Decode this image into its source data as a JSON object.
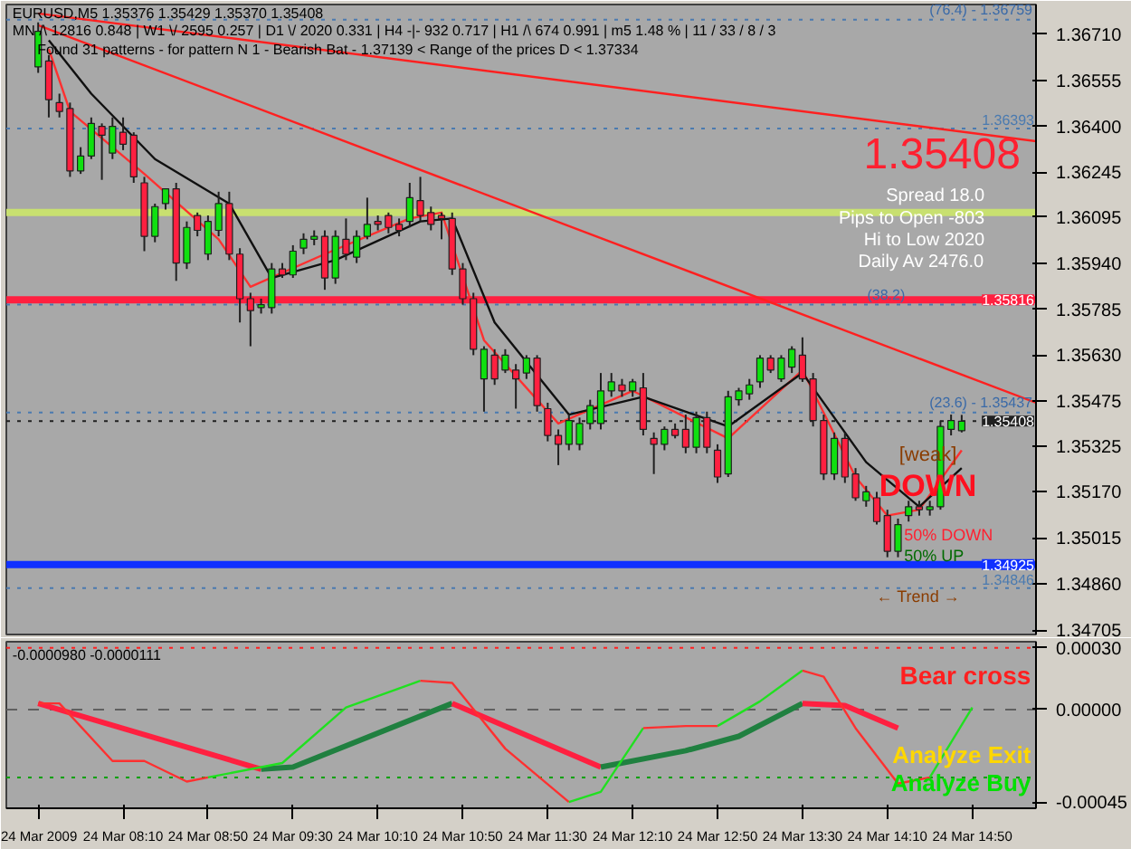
{
  "chart_data": [
    {
      "type": "candlestick",
      "title": "EURUSD,M5  1.35376 1.35429 1.35370 1.35408",
      "subtitle": "MN /\\ 12816   0.848  |  W1 \\/ 2595   0.257  |  D1 \\/ 2020   0.331  |  H4 -|- 932   0.717  |  H1 /\\ 674   0.991  |  m5  1.48 %  |  11 / 33 / 8 / 3",
      "annotations": [
        "Found 31 patterns  -  for pattern N 1 - Bearish Bat - 1.37139 < Range of the prices D < 1.37334",
        "1.35408",
        "Spread  18.0",
        "Pips to Open  -803",
        "Hi to Low  2020",
        "Daily Av  2476.0",
        "[weak]",
        "DOWN",
        "50%   DOWN",
        "50%   UP",
        "←   Trend   →",
        {
          "text": "(76.4) - 1.36759",
          "x": "2009-03-24T15:20",
          "y": 1.36759
        },
        {
          "text": "(38.2)",
          "x": "2009-03-24T14:20",
          "y": 1.358
        },
        {
          "text": "(23.6) - 1.35437",
          "x": "2009-03-24T15:20",
          "y": 1.35437
        }
      ],
      "tick_labels": "y",
      "xlim": [
        "2009-03-24T07:15",
        "2009-03-24T15:20"
      ],
      "ylim": [
        1.3469,
        1.3681
      ],
      "yticks": [
        {
          "value": 1.3671,
          "label": "1.36710"
        },
        {
          "value": 1.36555,
          "label": "1.36555"
        },
        {
          "value": 1.364,
          "label": "1.36400"
        },
        {
          "value": 1.36245,
          "label": "1.36245"
        },
        {
          "value": 1.36095,
          "label": "1.36095"
        },
        {
          "value": 1.3594,
          "label": "1.35940"
        },
        {
          "value": 1.35785,
          "label": "1.35785"
        },
        {
          "value": 1.3563,
          "label": "1.35630"
        },
        {
          "value": 1.35475,
          "label": "1.35475"
        },
        {
          "value": 1.35325,
          "label": "1.35325"
        },
        {
          "value": 1.3517,
          "label": "1.35170"
        },
        {
          "value": 1.35015,
          "label": "1.35015"
        },
        {
          "value": 1.3486,
          "label": "1.34860"
        },
        {
          "value": 1.34705,
          "label": "1.34705"
        }
      ],
      "ref_lines": [
        {
          "axis": "y",
          "value": 1.36759,
          "color": "#4a7ab0",
          "line_style": "dotted"
        },
        {
          "axis": "y",
          "value": 1.36393,
          "label": "1.36393",
          "color": "#4a7ab0",
          "line_style": "dotted"
        },
        {
          "axis": "y",
          "value": 1.3611,
          "color": "#c8e070",
          "line_style": "solid"
        },
        {
          "axis": "y",
          "value": 1.35816,
          "label": "1.35816",
          "color": "#ff2040",
          "line_style": "solid"
        },
        {
          "axis": "y",
          "value": 1.358,
          "color": "#4a7ab0",
          "line_style": "dotted"
        },
        {
          "axis": "y",
          "value": 1.35437,
          "color": "#4a7ab0",
          "line_style": "dotted"
        },
        {
          "axis": "y",
          "value": 1.35408,
          "label": "1.35408",
          "color": "#202020",
          "line_style": "dotted"
        },
        {
          "axis": "y",
          "value": 1.34925,
          "label": "1.34925",
          "color": "#1030ff",
          "line_style": "solid"
        },
        {
          "axis": "y",
          "value": 1.34846,
          "label": "1.34846",
          "color": "#4a7ab0",
          "line_style": "dotted"
        }
      ],
      "series": [
        {
          "type": "candlestick",
          "x": [
            "2009-03-24T07:30",
            "2009-03-24T07:35",
            "2009-03-24T07:40",
            "2009-03-24T07:45",
            "2009-03-24T07:50",
            "2009-03-24T07:55",
            "2009-03-24T08:00",
            "2009-03-24T08:05",
            "2009-03-24T08:10",
            "2009-03-24T08:15",
            "2009-03-24T08:20",
            "2009-03-24T08:25",
            "2009-03-24T08:30",
            "2009-03-24T08:35",
            "2009-03-24T08:40",
            "2009-03-24T08:45",
            "2009-03-24T08:50",
            "2009-03-24T08:55",
            "2009-03-24T09:00",
            "2009-03-24T09:05",
            "2009-03-24T09:10",
            "2009-03-24T09:15",
            "2009-03-24T09:20",
            "2009-03-24T09:25",
            "2009-03-24T09:30",
            "2009-03-24T09:35",
            "2009-03-24T09:40",
            "2009-03-24T09:45",
            "2009-03-24T09:50",
            "2009-03-24T09:55",
            "2009-03-24T10:00",
            "2009-03-24T10:05",
            "2009-03-24T10:10",
            "2009-03-24T10:15",
            "2009-03-24T10:20",
            "2009-03-24T10:25",
            "2009-03-24T10:30",
            "2009-03-24T10:35",
            "2009-03-24T10:40",
            "2009-03-24T10:45",
            "2009-03-24T10:50",
            "2009-03-24T10:55",
            "2009-03-24T11:00",
            "2009-03-24T11:05",
            "2009-03-24T11:10",
            "2009-03-24T11:15",
            "2009-03-24T11:20",
            "2009-03-24T11:25",
            "2009-03-24T11:30",
            "2009-03-24T11:35",
            "2009-03-24T11:40",
            "2009-03-24T11:45",
            "2009-03-24T11:50",
            "2009-03-24T11:55",
            "2009-03-24T12:00",
            "2009-03-24T12:05",
            "2009-03-24T12:10",
            "2009-03-24T12:15",
            "2009-03-24T12:20",
            "2009-03-24T12:25",
            "2009-03-24T12:30",
            "2009-03-24T12:35",
            "2009-03-24T12:40",
            "2009-03-24T12:45",
            "2009-03-24T12:50",
            "2009-03-24T12:55",
            "2009-03-24T13:00",
            "2009-03-24T13:05",
            "2009-03-24T13:10",
            "2009-03-24T13:15",
            "2009-03-24T13:20",
            "2009-03-24T13:25",
            "2009-03-24T13:30",
            "2009-03-24T13:35",
            "2009-03-24T13:40",
            "2009-03-24T13:45",
            "2009-03-24T13:50",
            "2009-03-24T13:55",
            "2009-03-24T14:00",
            "2009-03-24T14:05",
            "2009-03-24T14:10",
            "2009-03-24T14:15",
            "2009-03-24T14:20",
            "2009-03-24T14:25",
            "2009-03-24T14:30",
            "2009-03-24T14:35",
            "2009-03-24T14:40",
            "2009-03-24T14:45"
          ],
          "ohlc": [
            [
              1.366,
              1.3675,
              1.3658,
              1.3672
            ],
            [
              1.3662,
              1.3664,
              1.3643,
              1.3649
            ],
            [
              1.3648,
              1.3651,
              1.3643,
              1.3645
            ],
            [
              1.3646,
              1.3648,
              1.3623,
              1.3625
            ],
            [
              1.3625,
              1.3633,
              1.3624,
              1.363
            ],
            [
              1.363,
              1.3643,
              1.3629,
              1.3641
            ],
            [
              1.364,
              1.3641,
              1.3622,
              1.3637
            ],
            [
              1.3631,
              1.3643,
              1.3629,
              1.364
            ],
            [
              1.3638,
              1.3643,
              1.3632,
              1.3634
            ],
            [
              1.3637,
              1.3638,
              1.3621,
              1.3623
            ],
            [
              1.3621,
              1.3623,
              1.3598,
              1.3603
            ],
            [
              1.3603,
              1.3614,
              1.3601,
              1.3613
            ],
            [
              1.3614,
              1.3619,
              1.3612,
              1.3619
            ],
            [
              1.3619,
              1.3621,
              1.3588,
              1.3594
            ],
            [
              1.3594,
              1.3608,
              1.3592,
              1.3606
            ],
            [
              1.361,
              1.3611,
              1.3603,
              1.3605
            ],
            [
              1.3597,
              1.361,
              1.3595,
              1.3608
            ],
            [
              1.3605,
              1.3618,
              1.3603,
              1.3614
            ],
            [
              1.3614,
              1.3618,
              1.3595,
              1.3597
            ],
            [
              1.3597,
              1.3599,
              1.3574,
              1.3582
            ],
            [
              1.3582,
              1.3584,
              1.3566,
              1.3578
            ],
            [
              1.3579,
              1.3582,
              1.3577,
              1.358
            ],
            [
              1.3579,
              1.3594,
              1.3577,
              1.3592
            ],
            [
              1.3592,
              1.3594,
              1.3589,
              1.359
            ],
            [
              1.359,
              1.36,
              1.3589,
              1.3598
            ],
            [
              1.3599,
              1.3604,
              1.3597,
              1.3602
            ],
            [
              1.3602,
              1.3605,
              1.36,
              1.3603
            ],
            [
              1.3603,
              1.3605,
              1.3585,
              1.3589
            ],
            [
              1.3589,
              1.3605,
              1.3587,
              1.3603
            ],
            [
              1.3602,
              1.3609,
              1.3595,
              1.3597
            ],
            [
              1.3596,
              1.3605,
              1.3594,
              1.3603
            ],
            [
              1.3603,
              1.3616,
              1.3602,
              1.3607
            ],
            [
              1.3608,
              1.361,
              1.3605,
              1.3607
            ],
            [
              1.361,
              1.3611,
              1.3604,
              1.3606
            ],
            [
              1.3607,
              1.3609,
              1.3603,
              1.3605
            ],
            [
              1.3608,
              1.3621,
              1.3606,
              1.3616
            ],
            [
              1.3615,
              1.3623,
              1.3608,
              1.361
            ],
            [
              1.3611,
              1.3613,
              1.3605,
              1.3607
            ],
            [
              1.361,
              1.3611,
              1.3602,
              1.3609
            ],
            [
              1.3609,
              1.3611,
              1.359,
              1.3592
            ],
            [
              1.3592,
              1.3594,
              1.358,
              1.3582
            ],
            [
              1.3582,
              1.3584,
              1.3563,
              1.3565
            ],
            [
              1.3555,
              1.3566,
              1.3544,
              1.3565
            ],
            [
              1.3563,
              1.3565,
              1.3553,
              1.3555
            ],
            [
              1.3558,
              1.3565,
              1.3557,
              1.3563
            ],
            [
              1.3558,
              1.356,
              1.3545,
              1.3555
            ],
            [
              1.3557,
              1.3563,
              1.3555,
              1.3562
            ],
            [
              1.3562,
              1.3563,
              1.3544,
              1.3546
            ],
            [
              1.3545,
              1.3547,
              1.3534,
              1.3536
            ],
            [
              1.3536,
              1.3538,
              1.3526,
              1.3533
            ],
            [
              1.3533,
              1.3543,
              1.3531,
              1.3541
            ],
            [
              1.3533,
              1.3542,
              1.3531,
              1.354
            ],
            [
              1.354,
              1.3548,
              1.3538,
              1.3546
            ],
            [
              1.354,
              1.3557,
              1.3538,
              1.3551
            ],
            [
              1.3551,
              1.3557,
              1.3549,
              1.3554
            ],
            [
              1.3553,
              1.3555,
              1.3549,
              1.3551
            ],
            [
              1.3551,
              1.3555,
              1.3549,
              1.3554
            ],
            [
              1.3552,
              1.3557,
              1.3536,
              1.3538
            ],
            [
              1.3535,
              1.3537,
              1.3523,
              1.3533
            ],
            [
              1.3533,
              1.3539,
              1.3531,
              1.3538
            ],
            [
              1.3538,
              1.354,
              1.3535,
              1.3536
            ],
            [
              1.3538,
              1.3543,
              1.353,
              1.3532
            ],
            [
              1.3532,
              1.3544,
              1.353,
              1.3542
            ],
            [
              1.3542,
              1.3544,
              1.353,
              1.3532
            ],
            [
              1.3531,
              1.3533,
              1.352,
              1.3522
            ],
            [
              1.3523,
              1.3551,
              1.3522,
              1.3549
            ],
            [
              1.3548,
              1.3552,
              1.3546,
              1.3551
            ],
            [
              1.355,
              1.3555,
              1.3548,
              1.3553
            ],
            [
              1.3554,
              1.3563,
              1.3552,
              1.3562
            ],
            [
              1.3562,
              1.3563,
              1.3557,
              1.3558
            ],
            [
              1.3555,
              1.3563,
              1.3554,
              1.3562
            ],
            [
              1.3559,
              1.3566,
              1.3557,
              1.3565
            ],
            [
              1.3563,
              1.3569,
              1.3554,
              1.3555
            ],
            [
              1.3555,
              1.3557,
              1.3539,
              1.3541
            ],
            [
              1.3541,
              1.3543,
              1.3521,
              1.3523
            ],
            [
              1.3523,
              1.3537,
              1.3521,
              1.3535
            ],
            [
              1.3535,
              1.3537,
              1.352,
              1.3522
            ],
            [
              1.3523,
              1.3525,
              1.3514,
              1.3515
            ],
            [
              1.3514,
              1.3519,
              1.3512,
              1.3517
            ],
            [
              1.3515,
              1.3517,
              1.3506,
              1.3507
            ],
            [
              1.3509,
              1.3511,
              1.3495,
              1.3497
            ],
            [
              1.3497,
              1.3508,
              1.3495,
              1.3506
            ],
            [
              1.3509,
              1.3514,
              1.3507,
              1.3512
            ],
            [
              1.3512,
              1.3514,
              1.3509,
              1.3511
            ],
            [
              1.3511,
              1.3514,
              1.3509,
              1.3512
            ],
            [
              1.3512,
              1.3541,
              1.3511,
              1.3539
            ],
            [
              1.3538,
              1.3543,
              1.3536,
              1.3541
            ],
            [
              1.35376,
              1.35429,
              1.3537,
              1.35408
            ]
          ]
        },
        {
          "type": "line",
          "color": "#ff3030",
          "x": [
            "2009-03-24T07:35",
            "2009-03-24T07:45",
            "2009-03-24T08:20",
            "2009-03-24T08:55",
            "2009-03-24T09:10",
            "2009-03-24T09:45",
            "2009-03-24T10:25",
            "2009-03-24T10:40",
            "2009-03-24T11:00",
            "2009-03-24T11:35",
            "2009-03-24T12:10",
            "2009-03-24T12:55",
            "2009-03-24T13:30",
            "2009-03-24T13:55",
            "2009-03-24T14:10",
            "2009-03-24T14:25",
            "2009-03-24T14:45"
          ],
          "values": [
            1.3666,
            1.3645,
            1.3624,
            1.3602,
            1.3586,
            1.3597,
            1.3609,
            1.3611,
            1.3568,
            1.354,
            1.3551,
            1.3535,
            1.3558,
            1.3522,
            1.3509,
            1.3511,
            1.3531
          ]
        },
        {
          "type": "line",
          "color": "#101010",
          "x": [
            "2009-03-24T07:35",
            "2009-03-24T07:55",
            "2009-03-24T08:25",
            "2009-03-24T09:00",
            "2009-03-24T09:20",
            "2009-03-24T09:50",
            "2009-03-24T10:30",
            "2009-03-24T10:45",
            "2009-03-24T11:05",
            "2009-03-24T11:40",
            "2009-03-24T12:15",
            "2009-03-24T12:55",
            "2009-03-24T13:30",
            "2009-03-24T14:00",
            "2009-03-24T14:25",
            "2009-03-24T14:45"
          ],
          "values": [
            1.3669,
            1.3651,
            1.3629,
            1.3614,
            1.3589,
            1.3595,
            1.3608,
            1.3609,
            1.3574,
            1.3543,
            1.3549,
            1.3539,
            1.3557,
            1.3527,
            1.3512,
            1.3525
          ]
        },
        {
          "type": "line",
          "color": "#ff2020",
          "x": [
            "2009-03-24T07:30",
            "2009-03-24T15:20"
          ],
          "values": [
            1.3678,
            1.3635
          ]
        },
        {
          "type": "line",
          "color": "#ff2020",
          "x": [
            "2009-03-24T07:30",
            "2009-03-24T15:20"
          ],
          "values": [
            1.3674,
            1.3547
          ]
        }
      ]
    },
    {
      "type": "line",
      "annotations": [
        "-0.0000980 -0.0000111",
        "Bear cross",
        "Analyze Exit",
        "Analyze Buy"
      ],
      "xlim": [
        "2009-03-24T07:15",
        "2009-03-24T15:20"
      ],
      "xticks": [
        {
          "value": "2009-03-24T07:30",
          "label": "24 Mar 2009"
        },
        {
          "value": "2009-03-24T08:10",
          "label": "24 Mar 08:10"
        },
        {
          "value": "2009-03-24T08:50",
          "label": "24 Mar 08:50"
        },
        {
          "value": "2009-03-24T09:30",
          "label": "24 Mar 09:30"
        },
        {
          "value": "2009-03-24T10:10",
          "label": "24 Mar 10:10"
        },
        {
          "value": "2009-03-24T10:50",
          "label": "24 Mar 10:50"
        },
        {
          "value": "2009-03-24T11:30",
          "label": "24 Mar 11:30"
        },
        {
          "value": "2009-03-24T12:10",
          "label": "24 Mar 12:10"
        },
        {
          "value": "2009-03-24T12:50",
          "label": "24 Mar 12:50"
        },
        {
          "value": "2009-03-24T13:30",
          "label": "24 Mar 13:30"
        },
        {
          "value": "2009-03-24T14:10",
          "label": "24 Mar 14:10"
        },
        {
          "value": "2009-03-24T14:50",
          "label": "24 Mar 14:50"
        }
      ],
      "ylim": [
        -0.00048,
        0.00033
      ],
      "yticks": [
        {
          "value": 0.0003,
          "label": "0.00030"
        },
        {
          "value": 0,
          "label": "0.00000"
        },
        {
          "value": -0.00045,
          "label": "-0.00045"
        }
      ],
      "ref_lines": [
        {
          "axis": "y",
          "value": 0.0003,
          "color": "#ff2020",
          "line_style": "dotted"
        },
        {
          "axis": "y",
          "value": 0,
          "color": "#606060",
          "line_style": "dashed"
        },
        {
          "axis": "y",
          "value": -0.00033,
          "color": "#00a000",
          "line_style": "dotted"
        }
      ],
      "series": [
        {
          "color": "#ff2040",
          "x": [
            "2009-03-24T07:30",
            "2009-03-24T09:15"
          ],
          "values": [
            3e-05,
            -0.00029
          ]
        },
        {
          "color": "#208040",
          "x": [
            "2009-03-24T09:15",
            "2009-03-24T09:30",
            "2009-03-24T10:45"
          ],
          "values": [
            -0.00029,
            -0.00028,
            3e-05
          ]
        },
        {
          "color": "#ff2040",
          "x": [
            "2009-03-24T10:45",
            "2009-03-24T11:55"
          ],
          "values": [
            3e-05,
            -0.00028
          ]
        },
        {
          "color": "#208040",
          "x": [
            "2009-03-24T11:55",
            "2009-03-24T12:35",
            "2009-03-24T13:00",
            "2009-03-24T13:30"
          ],
          "values": [
            -0.00028,
            -0.0002,
            -0.00013,
            3e-05
          ]
        },
        {
          "color": "#ff2040",
          "x": [
            "2009-03-24T13:30",
            "2009-03-24T13:50",
            "2009-03-24T14:15"
          ],
          "values": [
            3e-05,
            2e-05,
            -9e-05
          ]
        },
        {
          "color": "#ff3030",
          "x": [
            "2009-03-24T07:30",
            "2009-03-24T07:40",
            "2009-03-24T08:05",
            "2009-03-24T08:20",
            "2009-03-24T08:40",
            "2009-03-24T08:50"
          ],
          "values": [
            3e-05,
            3e-05,
            -0.00025,
            -0.00025,
            -0.00035,
            -0.00033
          ]
        },
        {
          "color": "#20e020",
          "x": [
            "2009-03-24T08:50",
            "2009-03-24T09:25",
            "2009-03-24T09:55",
            "2009-03-24T10:30"
          ],
          "values": [
            -0.00033,
            -0.00026,
            1e-05,
            0.00014
          ]
        },
        {
          "color": "#ff3030",
          "x": [
            "2009-03-24T10:30",
            "2009-03-24T10:45",
            "2009-03-24T11:10",
            "2009-03-24T11:40"
          ],
          "values": [
            0.00014,
            0.00013,
            -0.00019,
            -0.00045
          ]
        },
        {
          "color": "#20e020",
          "x": [
            "2009-03-24T11:40",
            "2009-03-24T11:55",
            "2009-03-24T12:15"
          ],
          "values": [
            -0.00045,
            -0.0004,
            -9e-05
          ]
        },
        {
          "color": "#ff3030",
          "x": [
            "2009-03-24T12:15",
            "2009-03-24T12:35",
            "2009-03-24T12:50"
          ],
          "values": [
            -9e-05,
            -8e-05,
            -8e-05
          ]
        },
        {
          "color": "#20e020",
          "x": [
            "2009-03-24T12:50",
            "2009-03-24T13:10",
            "2009-03-24T13:30"
          ],
          "values": [
            -8e-05,
            4e-05,
            0.00019
          ]
        },
        {
          "color": "#ff3030",
          "x": [
            "2009-03-24T13:30",
            "2009-03-24T13:40",
            "2009-03-24T13:55",
            "2009-03-24T14:15",
            "2009-03-24T14:30"
          ],
          "values": [
            0.00019,
            0.00016,
            -9e-05,
            -0.00036,
            -0.00033
          ]
        },
        {
          "color": "#20e020",
          "x": [
            "2009-03-24T14:30",
            "2009-03-24T14:50"
          ],
          "values": [
            -0.00033,
            1e-05
          ]
        }
      ]
    }
  ]
}
